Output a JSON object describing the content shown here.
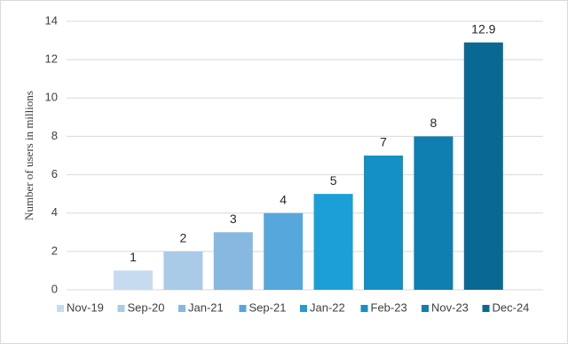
{
  "chart_data": {
    "type": "bar",
    "y_label": "Number of users in millions",
    "series": [
      {
        "name": "Nov-19",
        "color": "#c6dbef",
        "values": [
          1
        ]
      },
      {
        "name": "Sep-20",
        "color": "#a9cbe8",
        "values": [
          2
        ]
      },
      {
        "name": "Jan-21",
        "color": "#86b8e0",
        "values": [
          3
        ]
      },
      {
        "name": "Sep-21",
        "color": "#56a7dc",
        "values": [
          4
        ]
      },
      {
        "name": "Jan-22",
        "color": "#1b9fd6",
        "values": [
          5
        ]
      },
      {
        "name": "Feb-23",
        "color": "#1590c4",
        "values": [
          7
        ]
      },
      {
        "name": "Nov-23",
        "color": "#0f7eb0",
        "values": [
          8
        ]
      },
      {
        "name": "Dec-24",
        "color": "#0a6993",
        "values": [
          12.9
        ]
      }
    ],
    "ylim": [
      0,
      14
    ],
    "yticks": [
      0,
      2,
      4,
      6,
      8,
      10,
      12,
      14
    ],
    "grid": true,
    "legend": "bottom"
  }
}
